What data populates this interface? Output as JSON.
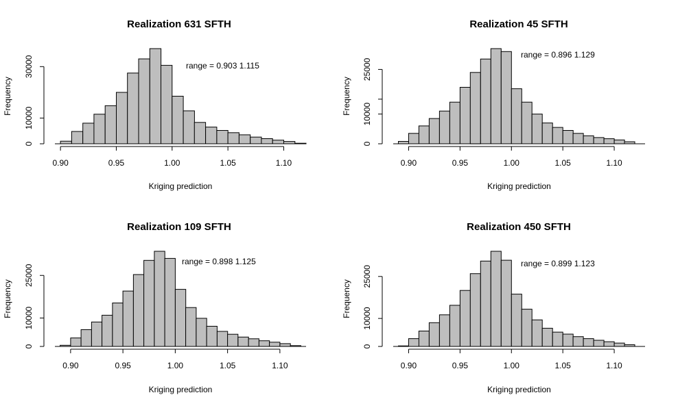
{
  "chart_data": [
    {
      "type": "bar",
      "title": "Realization 631 SFTH",
      "xlabel": "Kriging prediction",
      "ylabel": "Frequency",
      "annotation": "range = 0.903 1.115",
      "bin_start": 0.9,
      "bin_width": 0.01,
      "values": [
        1000,
        4800,
        8000,
        11500,
        14800,
        20000,
        27500,
        33000,
        37000,
        30500,
        18500,
        12800,
        8300,
        6500,
        5200,
        4300,
        3500,
        2600,
        2000,
        1400,
        900,
        200
      ],
      "xlim": [
        0.895,
        1.12
      ],
      "ylim": [
        0,
        37000
      ],
      "x_ticks": [
        0.9,
        0.95,
        1.0,
        1.05,
        1.1
      ],
      "x_tick_labels": [
        "0.90",
        "0.95",
        "1.00",
        "1.05",
        "1.10"
      ],
      "y_ticks": [
        0,
        10000,
        30000
      ],
      "y_tick_labels": [
        "0",
        "10000",
        "30000"
      ]
    },
    {
      "type": "bar",
      "title": "Realization 45 SFTH",
      "xlabel": "Kriging prediction",
      "ylabel": "Frequency",
      "annotation": "range = 0.896 1.129",
      "bin_start": 0.89,
      "bin_width": 0.01,
      "values": [
        800,
        3500,
        6000,
        8500,
        11000,
        14000,
        19000,
        24000,
        28500,
        32000,
        31000,
        18500,
        14000,
        10000,
        7000,
        5500,
        4500,
        3500,
        2700,
        2100,
        1700,
        1300,
        700
      ],
      "xlim": [
        0.885,
        1.13
      ],
      "ylim": [
        0,
        32000
      ],
      "x_ticks": [
        0.9,
        0.95,
        1.0,
        1.05,
        1.1
      ],
      "x_tick_labels": [
        "0.90",
        "0.95",
        "1.00",
        "1.05",
        "1.10"
      ],
      "y_ticks": [
        0,
        10000,
        15000,
        25000
      ],
      "y_tick_labels": [
        "0",
        "10000",
        "",
        "25000"
      ]
    },
    {
      "type": "bar",
      "title": "Realization 109 SFTH",
      "xlabel": "Kriging prediction",
      "ylabel": "Frequency",
      "annotation": "range = 0.898 1.125",
      "bin_start": 0.89,
      "bin_width": 0.01,
      "values": [
        400,
        3000,
        5900,
        8600,
        11000,
        15300,
        19500,
        25300,
        30300,
        33500,
        31000,
        20100,
        13700,
        9900,
        7100,
        5300,
        4300,
        3300,
        2700,
        2000,
        1500,
        1000,
        300
      ],
      "xlim": [
        0.885,
        1.125
      ],
      "ylim": [
        0,
        33500
      ],
      "x_ticks": [
        0.9,
        0.95,
        1.0,
        1.05,
        1.1
      ],
      "x_tick_labels": [
        "0.90",
        "0.95",
        "1.00",
        "1.05",
        "1.10"
      ],
      "y_ticks": [
        0,
        10000,
        25000
      ],
      "y_tick_labels": [
        "0",
        "10000",
        "25000"
      ]
    },
    {
      "type": "bar",
      "title": "Realization 450 SFTH",
      "xlabel": "Kriging prediction",
      "ylabel": "Frequency",
      "annotation": "range = 0.899 1.123",
      "bin_start": 0.89,
      "bin_width": 0.01,
      "values": [
        200,
        2800,
        5500,
        8500,
        11300,
        14700,
        20000,
        26000,
        30500,
        34000,
        30800,
        18700,
        13300,
        9500,
        6500,
        5100,
        4400,
        3500,
        2800,
        2200,
        1700,
        1200,
        600
      ],
      "xlim": [
        0.885,
        1.13
      ],
      "ylim": [
        0,
        34000
      ],
      "x_ticks": [
        0.9,
        0.95,
        1.0,
        1.05,
        1.1
      ],
      "x_tick_labels": [
        "0.90",
        "0.95",
        "1.00",
        "1.05",
        "1.10"
      ],
      "y_ticks": [
        0,
        10000,
        25000
      ],
      "y_tick_labels": [
        "0",
        "10000",
        "25000"
      ]
    }
  ]
}
